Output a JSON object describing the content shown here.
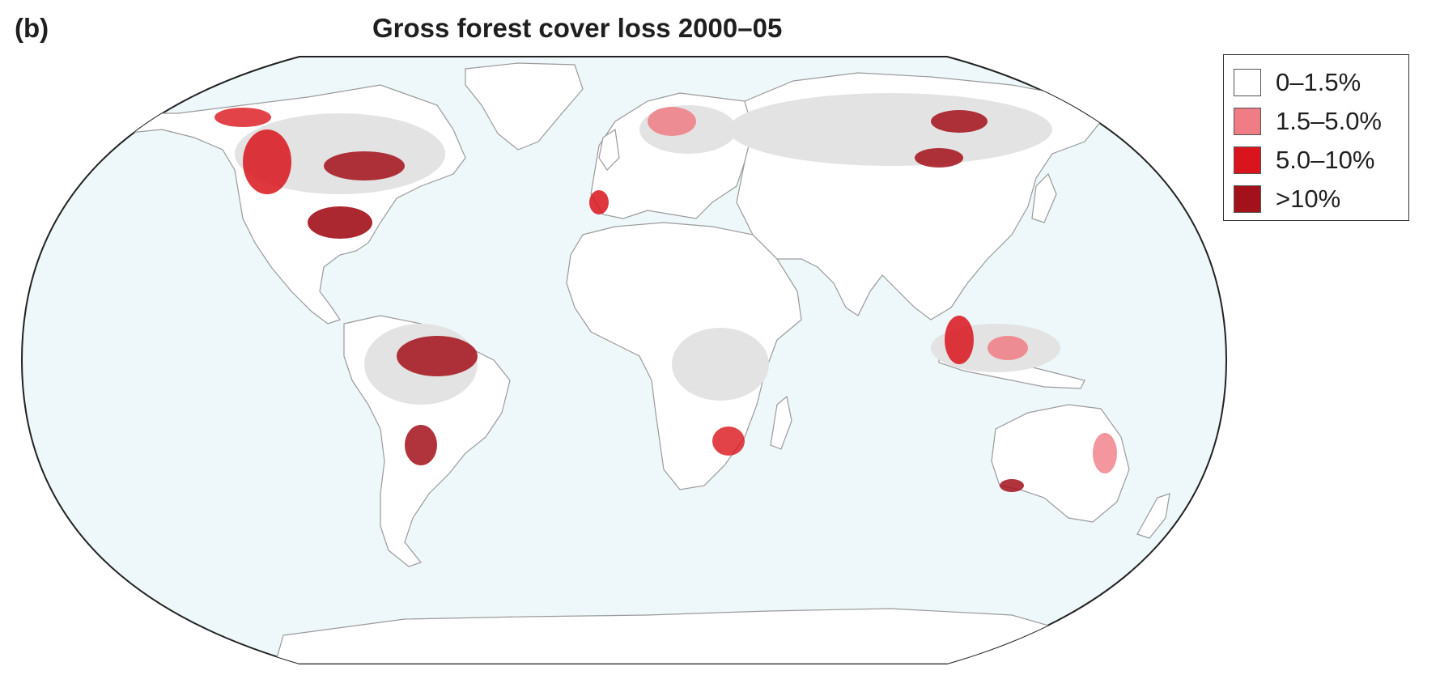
{
  "panel_label": "(b)",
  "title": "Gross forest cover loss 2000–05",
  "legend": {
    "placement": "top-right",
    "items": [
      {
        "label": "0–1.5%",
        "color": "#ffffff"
      },
      {
        "label": "1.5–5.0%",
        "color": "#f07c86"
      },
      {
        "label": "5.0–10%",
        "color": "#d9141c"
      },
      {
        "label": ">10%",
        "color": "#a3111a"
      }
    ]
  },
  "colors": {
    "ocean": "#eef7fa",
    "land": "#ffffff",
    "forest": "#e3e3e3",
    "border": "#9a9a9a",
    "outline": "#222222"
  },
  "map": {
    "projection": "Robinson",
    "regions": [
      "north-america",
      "south-america",
      "europe",
      "africa",
      "asia",
      "australia",
      "antarctica",
      "greenland"
    ]
  }
}
